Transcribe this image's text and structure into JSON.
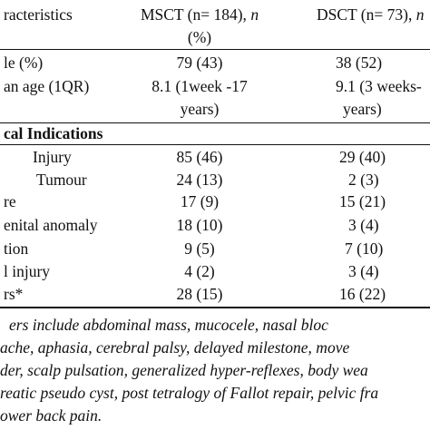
{
  "header": {
    "col0": "racteristics",
    "col1_line1_main": "MSCT (n= 184), ",
    "col1_line1_italic": "n",
    "col1_line2": "(%)",
    "col2_main": "DSCT (n= 73), ",
    "col2_italic": "n"
  },
  "rows_top": [
    {
      "label": "le (%)",
      "msct": "79 (43)",
      "dsct": "38 (52)"
    },
    {
      "label": "an age (1QR)",
      "msct": "8.1 (1week -17",
      "dsct": "9.1 (3 weeks-"
    }
  ],
  "age_cont": {
    "msct": "years)",
    "dsct": "years)"
  },
  "section_title": "cal Indications",
  "rows": [
    {
      "label": "Injury",
      "msct": "85 (46)",
      "dsct": "29 (40)"
    },
    {
      "label": "Tumour",
      "msct": "24 (13)",
      "dsct": "2 (3)"
    },
    {
      "label": "re",
      "msct": "17 (9)",
      "dsct": "15 (21)"
    },
    {
      "label": "enital anomaly",
      "msct": "18 (10)",
      "dsct": "3 (4)"
    },
    {
      "label": "tion",
      "msct": "9 (5)",
      "dsct": "7 (10)"
    },
    {
      "label": "l injury",
      "msct": "4 (2)",
      "dsct": "3 (4)"
    },
    {
      "label": "rs*",
      "msct": "28 (15)",
      "dsct": "16 (22)"
    }
  ],
  "footnote": [
    "ers include abdominal mass, mucocele, nasal bloc",
    "ache, aphasia, cerebral palsy, delayed milestone, move",
    "der, scalp pulsation, generalized hyper-reflexes, body wea",
    "reatic pseudo cyst, post tetralogy of Fallot repair, pelvic fra",
    "ower back pain."
  ]
}
